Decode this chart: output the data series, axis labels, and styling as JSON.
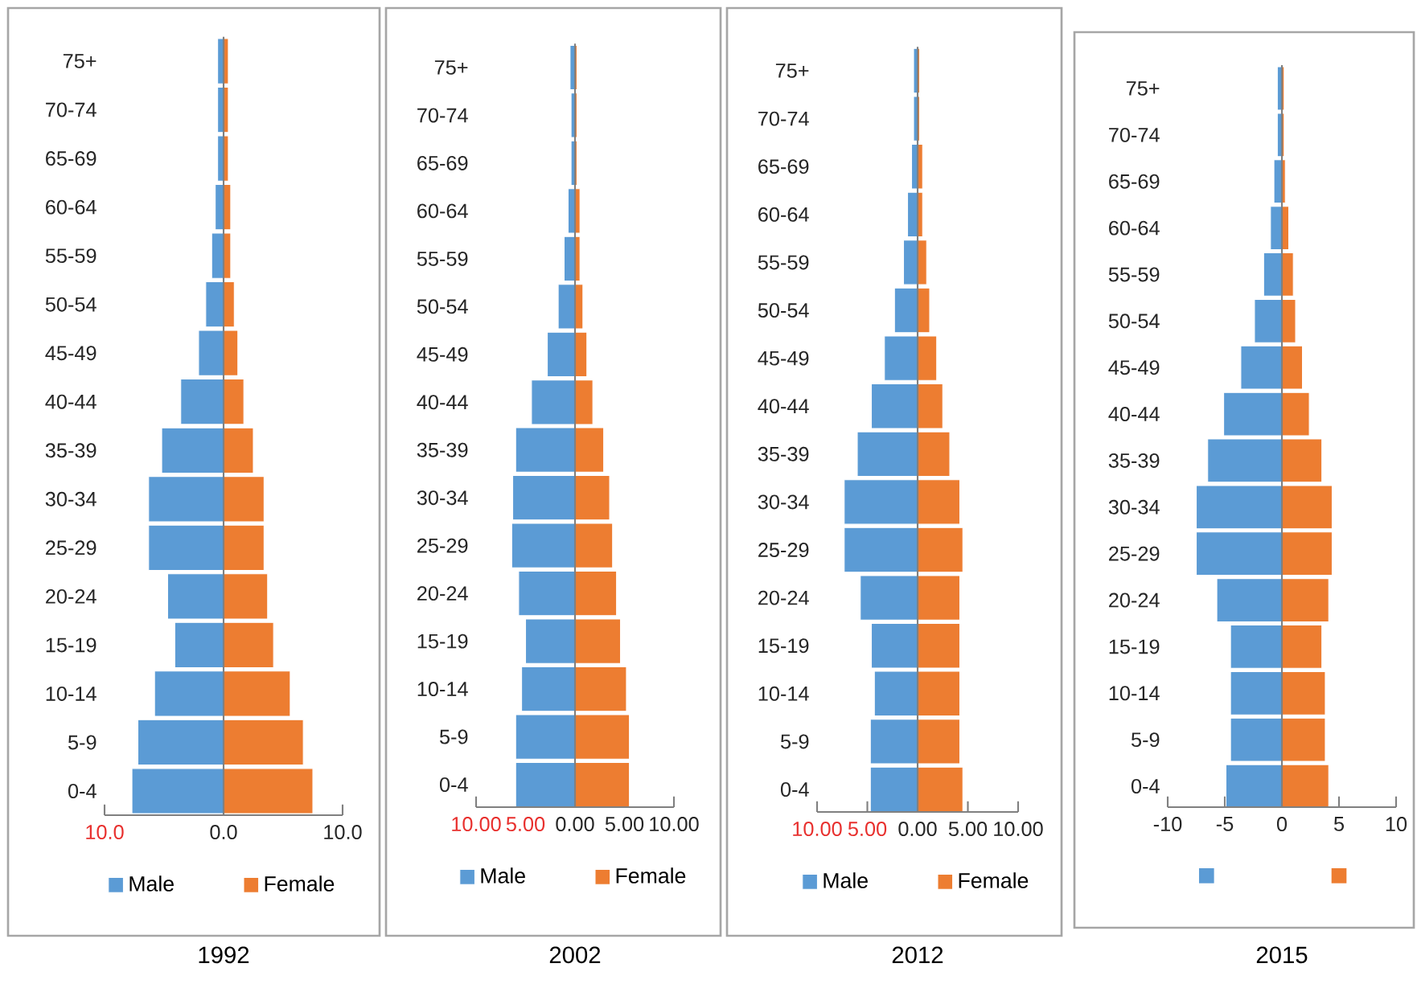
{
  "chart_data": [
    {
      "type": "bar",
      "orientation": "horizontal",
      "title": "1992",
      "stacked": true,
      "categories": [
        "75+",
        "70-74",
        "65-69",
        "60-64",
        "55-59",
        "50-54",
        "45-49",
        "40-44",
        "35-39",
        "30-34",
        "25-29",
        "20-24",
        "15-19",
        "10-14",
        "5-9",
        "0-4"
      ],
      "series": [
        {
          "name": "Male",
          "color": "#5b9bd5",
          "values": [
            -0.5,
            -0.5,
            -0.5,
            -0.7,
            -1.0,
            -1.5,
            -2.1,
            -3.6,
            -5.2,
            -6.3,
            -6.3,
            -4.7,
            -4.1,
            -5.8,
            -7.2,
            -7.7
          ]
        },
        {
          "name": "Female",
          "color": "#ed7d31",
          "values": [
            0.4,
            0.4,
            0.4,
            0.6,
            0.6,
            0.9,
            1.2,
            1.7,
            2.5,
            3.4,
            3.4,
            3.7,
            4.2,
            5.6,
            6.7,
            7.5
          ]
        }
      ],
      "xlim": [
        -10,
        10
      ],
      "xticks": [
        {
          "value": -10,
          "label": "10.0"
        },
        {
          "value": 0,
          "label": "0.0"
        },
        {
          "value": 10,
          "label": "10.0"
        }
      ],
      "legend": "bottom"
    },
    {
      "type": "bar",
      "orientation": "horizontal",
      "title": "2002",
      "stacked": true,
      "categories": [
        "75+",
        "70-74",
        "65-69",
        "60-64",
        "55-59",
        "50-54",
        "45-49",
        "40-44",
        "35-39",
        "30-34",
        "25-29",
        "20-24",
        "15-19",
        "10-14",
        "5-9",
        "0-4"
      ],
      "series": [
        {
          "name": "Male",
          "color": "#5b9bd5",
          "values": [
            -0.5,
            -0.4,
            -0.4,
            -0.7,
            -1.1,
            -1.7,
            -2.8,
            -4.4,
            -6.0,
            -6.3,
            -6.4,
            -5.7,
            -5.0,
            -5.4,
            -6.0,
            -6.0
          ]
        },
        {
          "name": "Female",
          "color": "#ed7d31",
          "values": [
            0.2,
            0.2,
            0.2,
            0.5,
            0.5,
            0.8,
            1.2,
            1.8,
            2.9,
            3.5,
            3.8,
            4.2,
            4.6,
            5.2,
            5.5,
            5.5
          ]
        }
      ],
      "xlim": [
        -10,
        10
      ],
      "xticks": [
        {
          "value": -10,
          "label": "10.00"
        },
        {
          "value": -5,
          "label": "5.00"
        },
        {
          "value": 0,
          "label": "0.00"
        },
        {
          "value": 5,
          "label": "5.00"
        },
        {
          "value": 10,
          "label": "10.00"
        }
      ],
      "legend": "bottom"
    },
    {
      "type": "bar",
      "orientation": "horizontal",
      "title": "2012",
      "stacked": true,
      "categories": [
        "75+",
        "70-74",
        "65-69",
        "60-64",
        "55-59",
        "50-54",
        "45-49",
        "40-44",
        "35-39",
        "30-34",
        "25-29",
        "20-24",
        "15-19",
        "10-14",
        "5-9",
        "0-4"
      ],
      "series": [
        {
          "name": "Male",
          "color": "#5b9bd5",
          "values": [
            -0.4,
            -0.4,
            -0.6,
            -1.0,
            -1.4,
            -2.3,
            -3.3,
            -4.6,
            -6.0,
            -7.3,
            -7.3,
            -5.7,
            -4.6,
            -4.3,
            -4.7,
            -4.7
          ]
        },
        {
          "name": "Female",
          "color": "#ed7d31",
          "values": [
            0.2,
            0.2,
            0.5,
            0.5,
            0.9,
            1.2,
            1.9,
            2.5,
            3.2,
            4.2,
            4.5,
            4.2,
            4.2,
            4.2,
            4.2,
            4.5
          ]
        }
      ],
      "xlim": [
        -10,
        10
      ],
      "xticks": [
        {
          "value": -10,
          "label": "10.00"
        },
        {
          "value": -5,
          "label": "5.00"
        },
        {
          "value": 0,
          "label": "0.00"
        },
        {
          "value": 5,
          "label": "5.00"
        },
        {
          "value": 10,
          "label": "10.00"
        }
      ],
      "legend": "bottom"
    },
    {
      "type": "bar",
      "orientation": "horizontal",
      "title": "2015",
      "stacked": true,
      "categories": [
        "75+",
        "70-74",
        "65-69",
        "60-64",
        "55-59",
        "50-54",
        "45-49",
        "40-44",
        "35-39",
        "30-34",
        "25-29",
        "20-24",
        "15-19",
        "10-14",
        "5-9",
        "0-4"
      ],
      "series": [
        {
          "color": "#5b9bd5",
          "values": [
            -0.4,
            -0.4,
            -0.7,
            -1.0,
            -1.6,
            -2.4,
            -3.6,
            -5.1,
            -6.5,
            -7.5,
            -7.5,
            -5.7,
            -4.5,
            -4.5,
            -4.5,
            -4.9
          ]
        },
        {
          "color": "#ed7d31",
          "values": [
            0.2,
            0.2,
            0.3,
            0.6,
            1.0,
            1.2,
            1.8,
            2.4,
            3.5,
            4.4,
            4.4,
            4.1,
            3.5,
            3.8,
            3.8,
            4.1
          ]
        }
      ],
      "xlim": [
        -10,
        10
      ],
      "xticks": [
        -10,
        -5,
        0,
        5,
        10
      ],
      "legend": "bottom"
    }
  ]
}
